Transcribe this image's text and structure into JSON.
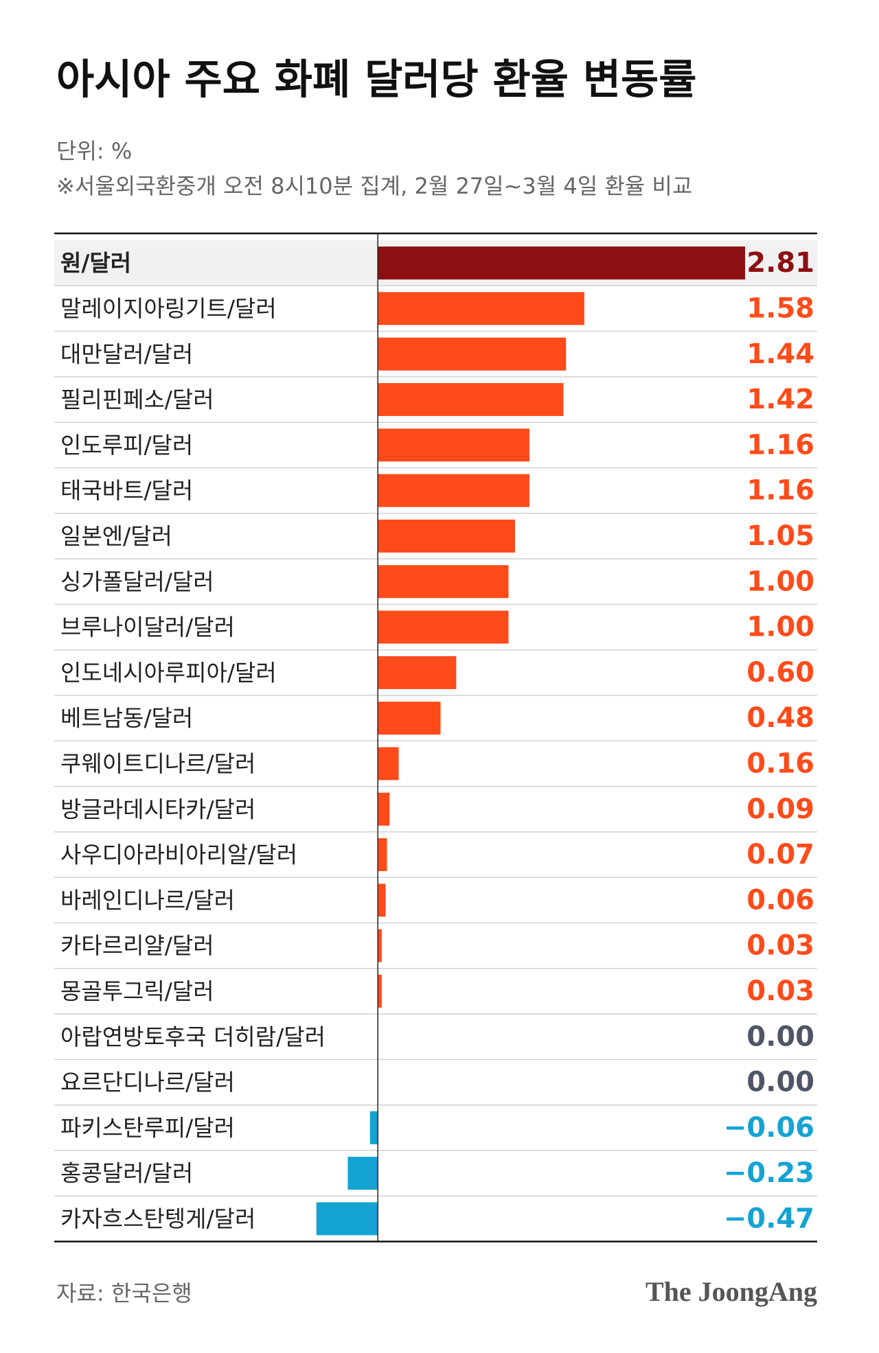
{
  "chart_data": {
    "type": "bar",
    "orientation": "horizontal",
    "title": "아시아 주요 화폐 달러당 환율 변동률",
    "unit": "단위: %",
    "note": "※서울외국환중개 오전 8시10분 집계, 2월 27일~3월 4일 환율 비교",
    "source": "자료: 한국은행",
    "brand": "The JoongAng",
    "categories": [
      "원/달러",
      "말레이지아링기트/달러",
      "대만달러/달러",
      "필리핀페소/달러",
      "인도루피/달러",
      "태국바트/달러",
      "일본엔/달러",
      "싱가폴달러/달러",
      "브루나이달러/달러",
      "인도네시아루피아/달러",
      "베트남동/달러",
      "쿠웨이트디나르/달러",
      "방글라데시타카/달러",
      "사우디아라비아리알/달러",
      "바레인디나르/달러",
      "카타르리얄/달러",
      "몽골투그릭/달러",
      "아랍연방토후국 더히람/달러",
      "요르단디나르/달러",
      "파키스탄루피/달러",
      "홍콩달러/달러",
      "카자흐스탄텡게/달러"
    ],
    "values": [
      2.81,
      1.58,
      1.44,
      1.42,
      1.16,
      1.16,
      1.05,
      1,
      1,
      0.6,
      0.48,
      0.16,
      0.09,
      0.07,
      0.06,
      0.03,
      0.03,
      0,
      0,
      -0.06,
      -0.23,
      -0.47
    ],
    "value_labels": [
      "2.81",
      "1.58",
      "1.44",
      "1.42",
      "1.16",
      "1.16",
      "1.05",
      "1.00",
      "1.00",
      "0.60",
      "0.48",
      "0.16",
      "0.09",
      "0.07",
      "0.06",
      "0.03",
      "0.03",
      "0.00",
      "0.00",
      "−0.06",
      "−0.23",
      "−0.47"
    ],
    "xlim": [
      -0.5,
      2.81
    ],
    "highlight_index": 0,
    "highlight_color": "#8c0f12",
    "positive_color": "#ff4b1a",
    "negative_color": "#14a3d3",
    "zero_color": "#4f5566"
  }
}
